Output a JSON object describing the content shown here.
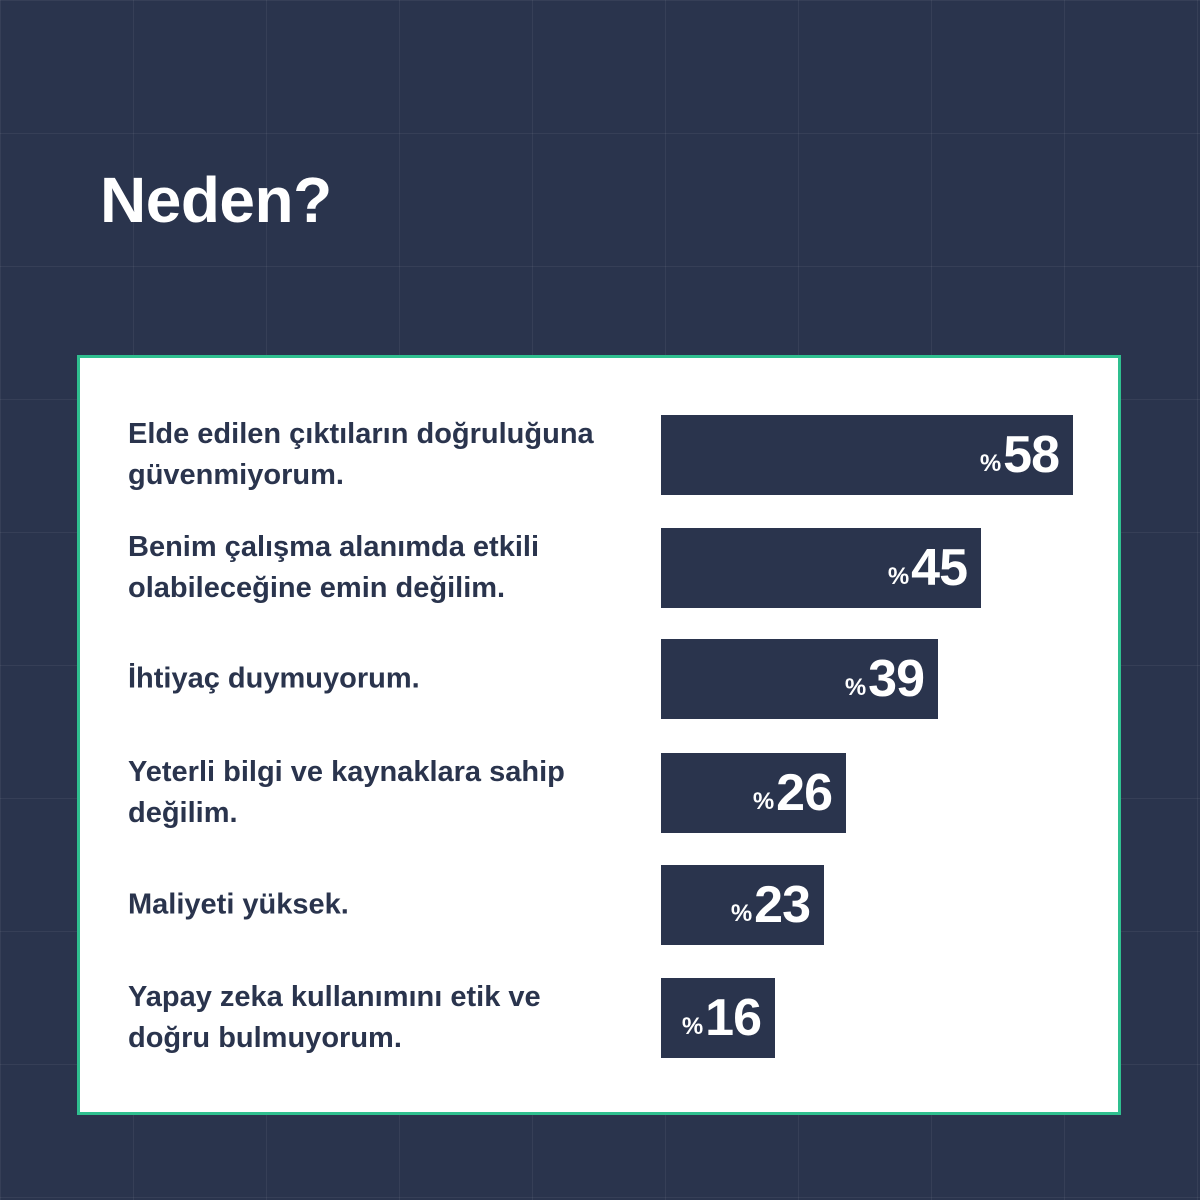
{
  "title": "Neden?",
  "chart_data": {
    "type": "bar",
    "orientation": "horizontal",
    "categories": [
      "Elde edilen çıktıların doğruluğuna güvenmiyorum.",
      "Benim çalışma alanımda etkili olabileceğine emin değilim.",
      "İhtiyaç duymuyorum.",
      "Yeterli bilgi ve kaynaklara sahip değilim.",
      "Maliyeti yüksek.",
      "Yapay zeka kullanımını etik ve doğru bulmuyorum."
    ],
    "values": [
      58,
      45,
      39,
      26,
      23,
      16
    ],
    "value_prefix": "%",
    "colors": {
      "background": "#2a344d",
      "bar": "#2a344d",
      "panel": "#ffffff",
      "panel_border": "#2fbf8f",
      "label": "#2a344d"
    }
  }
}
